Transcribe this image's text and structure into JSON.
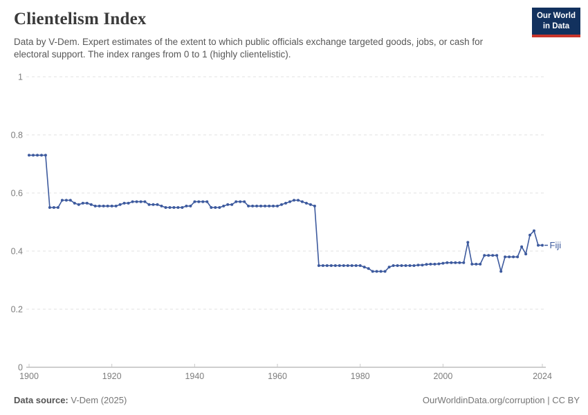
{
  "header": {
    "title": "Clientelism Index",
    "subtitle": "Data by V-Dem. Expert estimates of the extent to which public officials exchange targeted goods, jobs, or cash for electoral support. The index ranges from 0 to 1 (highly clientelistic).",
    "logo": {
      "line1": "Our World",
      "line2": "in Data",
      "bg_color": "#12315e",
      "accent_color": "#c9352b"
    }
  },
  "chart_data": {
    "type": "line",
    "title": "Clientelism Index",
    "xlabel": "",
    "ylabel": "",
    "x_range": [
      1900,
      2024
    ],
    "x_frequency": "annual",
    "ylim": [
      0,
      1
    ],
    "yticks": [
      0,
      0.2,
      0.4,
      0.6,
      0.8,
      1
    ],
    "xticks": [
      1900,
      1920,
      1940,
      1960,
      1980,
      2000,
      2024
    ],
    "grid": "horizontal-dashed",
    "legend_position": "end-of-line-label",
    "series": [
      {
        "name": "Fiji",
        "color": "#3d5a9e",
        "marker": "dot",
        "values": [
          0.73,
          0.73,
          0.73,
          0.73,
          0.73,
          0.55,
          0.55,
          0.55,
          0.575,
          0.575,
          0.575,
          0.565,
          0.56,
          0.565,
          0.565,
          0.56,
          0.555,
          0.555,
          0.555,
          0.555,
          0.555,
          0.555,
          0.56,
          0.565,
          0.565,
          0.57,
          0.57,
          0.57,
          0.57,
          0.56,
          0.56,
          0.56,
          0.555,
          0.55,
          0.55,
          0.55,
          0.55,
          0.55,
          0.555,
          0.555,
          0.57,
          0.57,
          0.57,
          0.57,
          0.55,
          0.55,
          0.55,
          0.555,
          0.56,
          0.56,
          0.57,
          0.57,
          0.57,
          0.555,
          0.555,
          0.555,
          0.555,
          0.555,
          0.555,
          0.555,
          0.555,
          0.56,
          0.565,
          0.57,
          0.575,
          0.575,
          0.57,
          0.565,
          0.56,
          0.555,
          0.35,
          0.35,
          0.35,
          0.35,
          0.35,
          0.35,
          0.35,
          0.35,
          0.35,
          0.35,
          0.35,
          0.345,
          0.34,
          0.33,
          0.33,
          0.33,
          0.33,
          0.345,
          0.35,
          0.35,
          0.35,
          0.35,
          0.35,
          0.35,
          0.352,
          0.352,
          0.354,
          0.355,
          0.355,
          0.356,
          0.358,
          0.36,
          0.36,
          0.36,
          0.36,
          0.36,
          0.43,
          0.355,
          0.355,
          0.355,
          0.385,
          0.385,
          0.385,
          0.385,
          0.33,
          0.38,
          0.38,
          0.38,
          0.38,
          0.415,
          0.39,
          0.455,
          0.47,
          0.42,
          0.42
        ]
      }
    ]
  },
  "footer": {
    "source_label": "Data source:",
    "source_value": "V-Dem (2025)",
    "attribution": "OurWorldinData.org/corruption | CC BY"
  }
}
